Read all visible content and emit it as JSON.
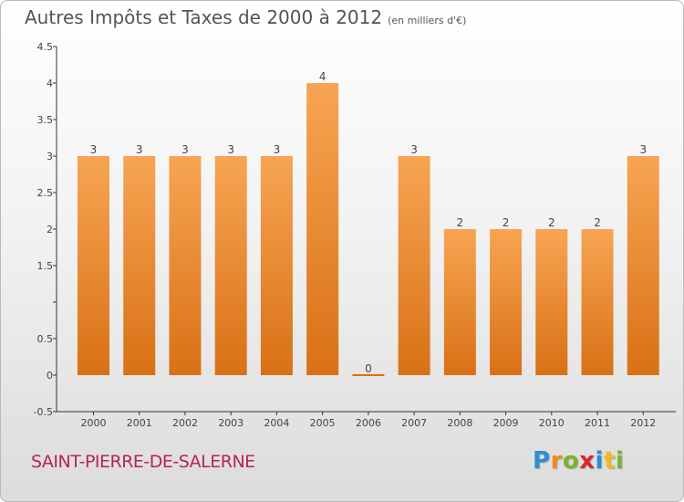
{
  "header": {
    "title": "Autres Impôts et Taxes de 2000 à 2012",
    "unit": "(en milliers d'€)"
  },
  "footer": {
    "commune": "SAINT-PIERRE-DE-SALERNE",
    "logo_letters": [
      {
        "char": "P",
        "color": "#2a8fd1"
      },
      {
        "char": "r",
        "color": "#f08b1a"
      },
      {
        "char": "o",
        "color": "#7ab32f"
      },
      {
        "char": "x",
        "color": "#d9262c"
      },
      {
        "char": "i",
        "color": "#2a8fd1"
      },
      {
        "char": "t",
        "color": "#f5b81c"
      },
      {
        "char": "i",
        "color": "#7ab32f"
      }
    ]
  },
  "colors": {
    "bar_top": "#f7a553",
    "bar_bottom": "#d97016",
    "axis": "#333333",
    "grid": "#555555",
    "title": "#555555",
    "commune": "#b7254f"
  },
  "chart_data": {
    "type": "bar",
    "title": "Autres Impôts et Taxes de 2000 à 2012",
    "unit": "(en milliers d'€)",
    "categories": [
      "2000",
      "2001",
      "2002",
      "2003",
      "2004",
      "2005",
      "2006",
      "2007",
      "2008",
      "2009",
      "2010",
      "2011",
      "2012"
    ],
    "values": [
      3,
      3,
      3,
      3,
      3,
      4,
      0,
      3,
      2,
      2,
      2,
      2,
      3
    ],
    "data_labels": [
      "3",
      "3",
      "3",
      "3",
      "3",
      "4",
      "0",
      "3",
      "2",
      "2",
      "2",
      "2",
      "3"
    ],
    "ylim": [
      -0.5,
      4.5
    ],
    "yticks": [
      -0.5,
      0,
      0.5,
      1,
      1.5,
      2,
      2.5,
      3,
      3.5,
      4,
      4.5
    ],
    "ytick_labels": [
      "-0.5",
      "0",
      "0.5",
      "",
      "1.5",
      "2",
      "2.5",
      "3",
      "3.5",
      "4",
      "4.5"
    ],
    "grid": false,
    "legend": "none"
  }
}
